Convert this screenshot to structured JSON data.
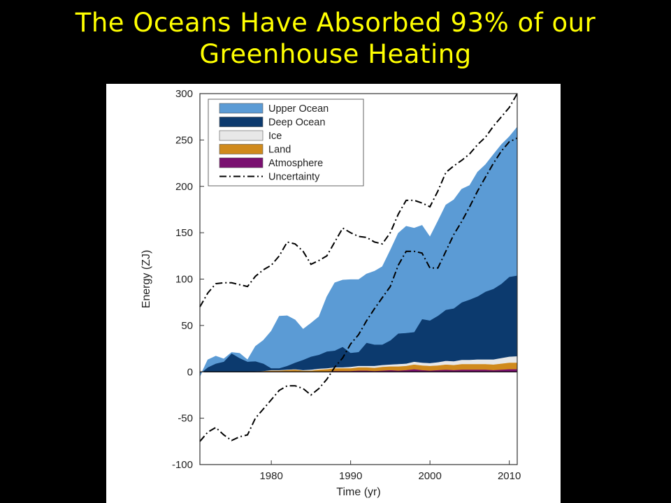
{
  "slide": {
    "title_line1": "The Oceans Have Absorbed 93% of our",
    "title_line2": "Greenhouse Heating"
  },
  "colors": {
    "background": "#000000",
    "title": "#ffff00",
    "upper_ocean": "#5b9bd5",
    "deep_ocean": "#0c3a6e",
    "ice": "#e8e8e8",
    "land": "#d08a1c",
    "atmosphere": "#7a1070",
    "uncertainty": "#000000"
  },
  "chart_data": {
    "type": "area",
    "stacked": true,
    "title": "",
    "xlabel": "Time (yr)",
    "ylabel": "Energy (ZJ)",
    "xlim": [
      1971,
      2011
    ],
    "ylim": [
      -100,
      300
    ],
    "x_ticks": [
      1980,
      1990,
      2000,
      2010
    ],
    "y_ticks": [
      -100,
      -50,
      0,
      50,
      100,
      150,
      200,
      250,
      300
    ],
    "legend_position": "top-left",
    "x": [
      1971,
      1972,
      1973,
      1974,
      1975,
      1976,
      1977,
      1978,
      1979,
      1980,
      1981,
      1982,
      1983,
      1984,
      1985,
      1986,
      1987,
      1988,
      1989,
      1990,
      1991,
      1992,
      1993,
      1994,
      1995,
      1996,
      1997,
      1998,
      1999,
      2000,
      2001,
      2002,
      2003,
      2004,
      2005,
      2006,
      2007,
      2008,
      2009,
      2010,
      2011
    ],
    "series": [
      {
        "name": "Atmosphere",
        "values": [
          0,
          0,
          0,
          0,
          0,
          0,
          0,
          0,
          0.5,
          0.5,
          0.5,
          0.5,
          0.5,
          0,
          0,
          0.5,
          0.5,
          1,
          1,
          1,
          1.5,
          1.5,
          1,
          1.5,
          2,
          1.5,
          2,
          3,
          2,
          1.5,
          2,
          2.5,
          2,
          2.5,
          2.5,
          2.5,
          2.5,
          2,
          2.5,
          3,
          3
        ]
      },
      {
        "name": "Land",
        "values": [
          0,
          0,
          0,
          0,
          0,
          0,
          0,
          0.5,
          0.5,
          1,
          1,
          1.5,
          2,
          1.5,
          1.5,
          2,
          2.5,
          3,
          3,
          3,
          3.5,
          3.5,
          3.5,
          4,
          4,
          4.5,
          4.5,
          5,
          5,
          5,
          5,
          5.5,
          5.5,
          6,
          6,
          6,
          6,
          6,
          6.5,
          7,
          7
        ]
      },
      {
        "name": "Ice",
        "values": [
          0,
          0,
          0,
          0,
          0,
          0,
          0,
          0,
          0,
          0.5,
          0.5,
          0.5,
          0.5,
          0.5,
          1,
          1,
          1,
          1,
          1,
          1.5,
          1.5,
          1.5,
          2,
          2,
          2,
          2.5,
          2.5,
          3,
          3,
          3,
          3.5,
          4,
          4,
          4.5,
          4.5,
          5,
          5,
          5.5,
          6,
          6.5,
          7
        ]
      },
      {
        "name": "Deep Ocean",
        "values": [
          -2,
          5,
          9,
          11,
          20,
          15,
          11,
          11,
          8,
          2,
          2,
          4,
          7,
          11,
          14,
          15,
          18,
          18,
          22,
          15,
          15,
          25,
          23,
          22,
          26,
          33,
          33,
          32,
          47,
          46,
          50,
          55,
          57,
          62,
          65,
          68,
          73,
          76,
          80,
          86,
          87
        ]
      },
      {
        "name": "Upper Ocean",
        "values": [
          -3,
          8,
          8,
          3,
          1,
          5,
          2,
          16,
          25,
          40,
          56,
          54,
          46,
          33,
          36,
          41,
          59,
          73,
          72,
          79,
          78,
          74,
          79,
          84,
          97,
          108,
          115,
          112,
          101,
          90,
          102,
          113,
          117,
          122,
          123,
          134,
          137,
          145,
          150,
          151,
          160
        ]
      }
    ],
    "uncertainty": {
      "name": "Uncertainty",
      "upper": [
        70,
        85,
        95,
        96,
        96,
        94,
        92,
        103,
        110,
        115,
        125,
        140,
        138,
        130,
        116,
        120,
        125,
        140,
        155,
        150,
        146,
        145,
        140,
        138,
        150,
        170,
        185,
        185,
        182,
        178,
        195,
        215,
        222,
        228,
        235,
        245,
        253,
        265,
        275,
        285,
        300
      ],
      "lower": [
        -75,
        -65,
        -60,
        -68,
        -74,
        -70,
        -68,
        -50,
        -40,
        -30,
        -20,
        -15,
        -15,
        -18,
        -25,
        -18,
        -8,
        5,
        15,
        30,
        40,
        55,
        68,
        80,
        92,
        115,
        130,
        130,
        128,
        112,
        112,
        130,
        148,
        162,
        178,
        195,
        210,
        225,
        238,
        248,
        252
      ]
    },
    "legend": [
      "Upper Ocean",
      "Deep Ocean",
      "Ice",
      "Land",
      "Atmosphere",
      "Uncertainty"
    ],
    "grid": false
  }
}
